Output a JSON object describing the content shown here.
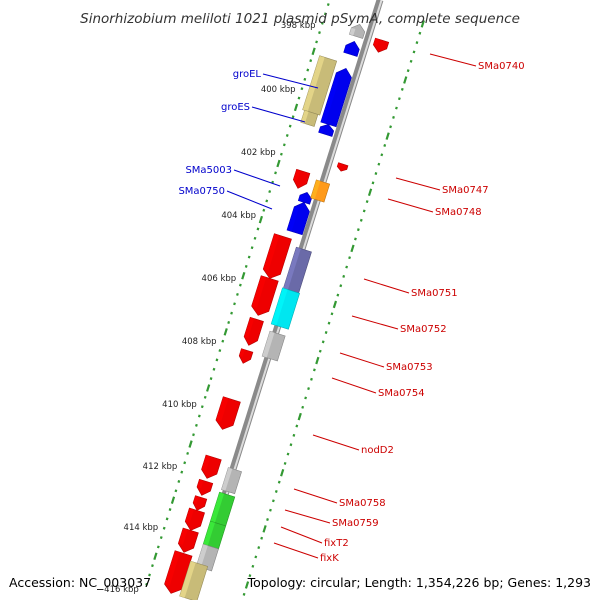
{
  "title": "Sinorhizobium meliloti 1021 plasmid pSymA, complete sequence",
  "footer": {
    "accession": "Accession: NC_003037",
    "topology": "Topology: circular; Length: 1,354,226 bp; Genes: 1,293"
  },
  "colors": {
    "forward_label": "#0000cc",
    "reverse_label": "#cc0000",
    "backbone": "#8a8a8a",
    "tick": "#339933",
    "red": "#ee0000",
    "blue": "#0000ee",
    "khaki": "#c8bb78",
    "grey": "#b4b4b4",
    "slate": "#6a6aa8",
    "cyan": "#00e6f0",
    "orange": "#ff9a1a",
    "green": "#33cc33"
  },
  "scale": {
    "unit": "kbp",
    "labels": [
      "398 kbp",
      "400 kbp",
      "402 kbp",
      "404 kbp",
      "406 kbp",
      "408 kbp",
      "410 kbp",
      "412 kbp",
      "414 kbp",
      "416 kbp"
    ]
  },
  "genes_forward": [
    {
      "name": "groEL",
      "color": "blue"
    },
    {
      "name": "groES",
      "color": "blue"
    },
    {
      "name": "SMa5003",
      "color": "blue"
    },
    {
      "name": "SMa0750",
      "color": "blue"
    }
  ],
  "genes_reverse": [
    {
      "name": "SMa0740",
      "color": "red"
    },
    {
      "name": "SMa0747",
      "color": "red"
    },
    {
      "name": "SMa0748",
      "color": "orange"
    },
    {
      "name": "SMa0751",
      "color": "slate"
    },
    {
      "name": "SMa0752",
      "color": "cyan"
    },
    {
      "name": "SMa0753",
      "color": "grey"
    },
    {
      "name": "SMa0754",
      "color": "red"
    },
    {
      "name": "nodD2",
      "color": "red"
    },
    {
      "name": "SMa0758",
      "color": "grey"
    },
    {
      "name": "SMa0759",
      "color": "green"
    },
    {
      "name": "fixT2",
      "color": "green"
    },
    {
      "name": "fixK",
      "color": "grey"
    }
  ]
}
